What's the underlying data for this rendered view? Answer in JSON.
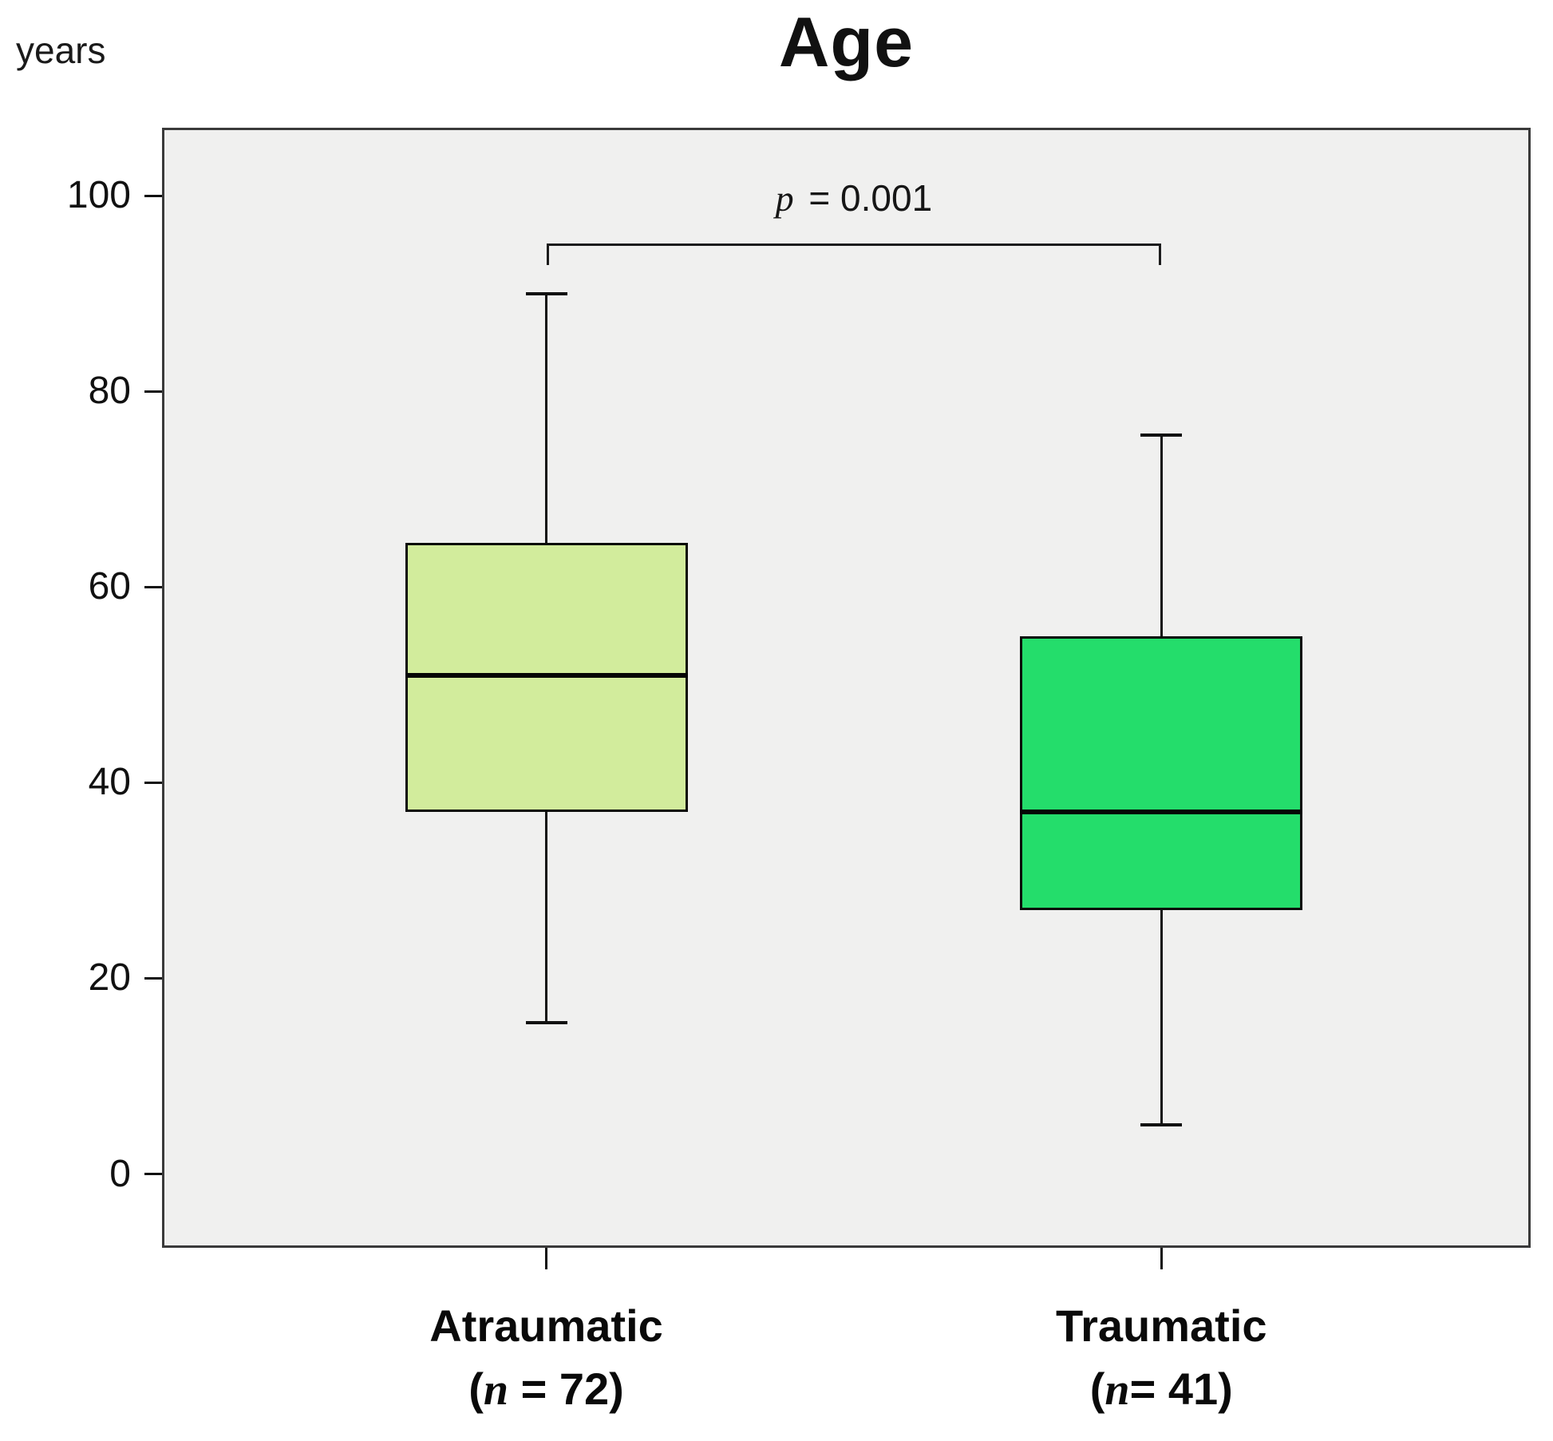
{
  "page": {
    "figure_title": "Age",
    "unit_label": "years"
  },
  "chart_data": {
    "type": "boxplot",
    "title": "Age",
    "ylabel": "years",
    "xlabel": "",
    "ylim": [
      -7.3,
      106.7
    ],
    "yticks": [
      0,
      20,
      40,
      60,
      80,
      100
    ],
    "grid": false,
    "legend": "none",
    "plot_bg": "#f0f0ef",
    "line_color": "#111111",
    "groups": [
      {
        "label": "Atraumatic",
        "n_open": "(",
        "n_var": "n",
        "n_rest": " = 72)",
        "n": 72,
        "x_frac": 0.28,
        "min": 15.5,
        "q1": 37,
        "median": 51,
        "q3": 64.5,
        "max": 90,
        "color": "#d2ec9c"
      },
      {
        "label": "Traumatic",
        "n_open": "(",
        "n_var": "n",
        "n_rest": "= 41)",
        "n": 41,
        "x_frac": 0.731,
        "min": 5,
        "q1": 27,
        "median": 37,
        "q3": 55,
        "max": 75.5,
        "color": "#24dd6b"
      }
    ],
    "significance": {
      "p_var": "p",
      "p_rest": " = 0.001",
      "bracket_y_value": 95.1,
      "bracket_drop": 2.2,
      "between": [
        0,
        1
      ]
    }
  }
}
